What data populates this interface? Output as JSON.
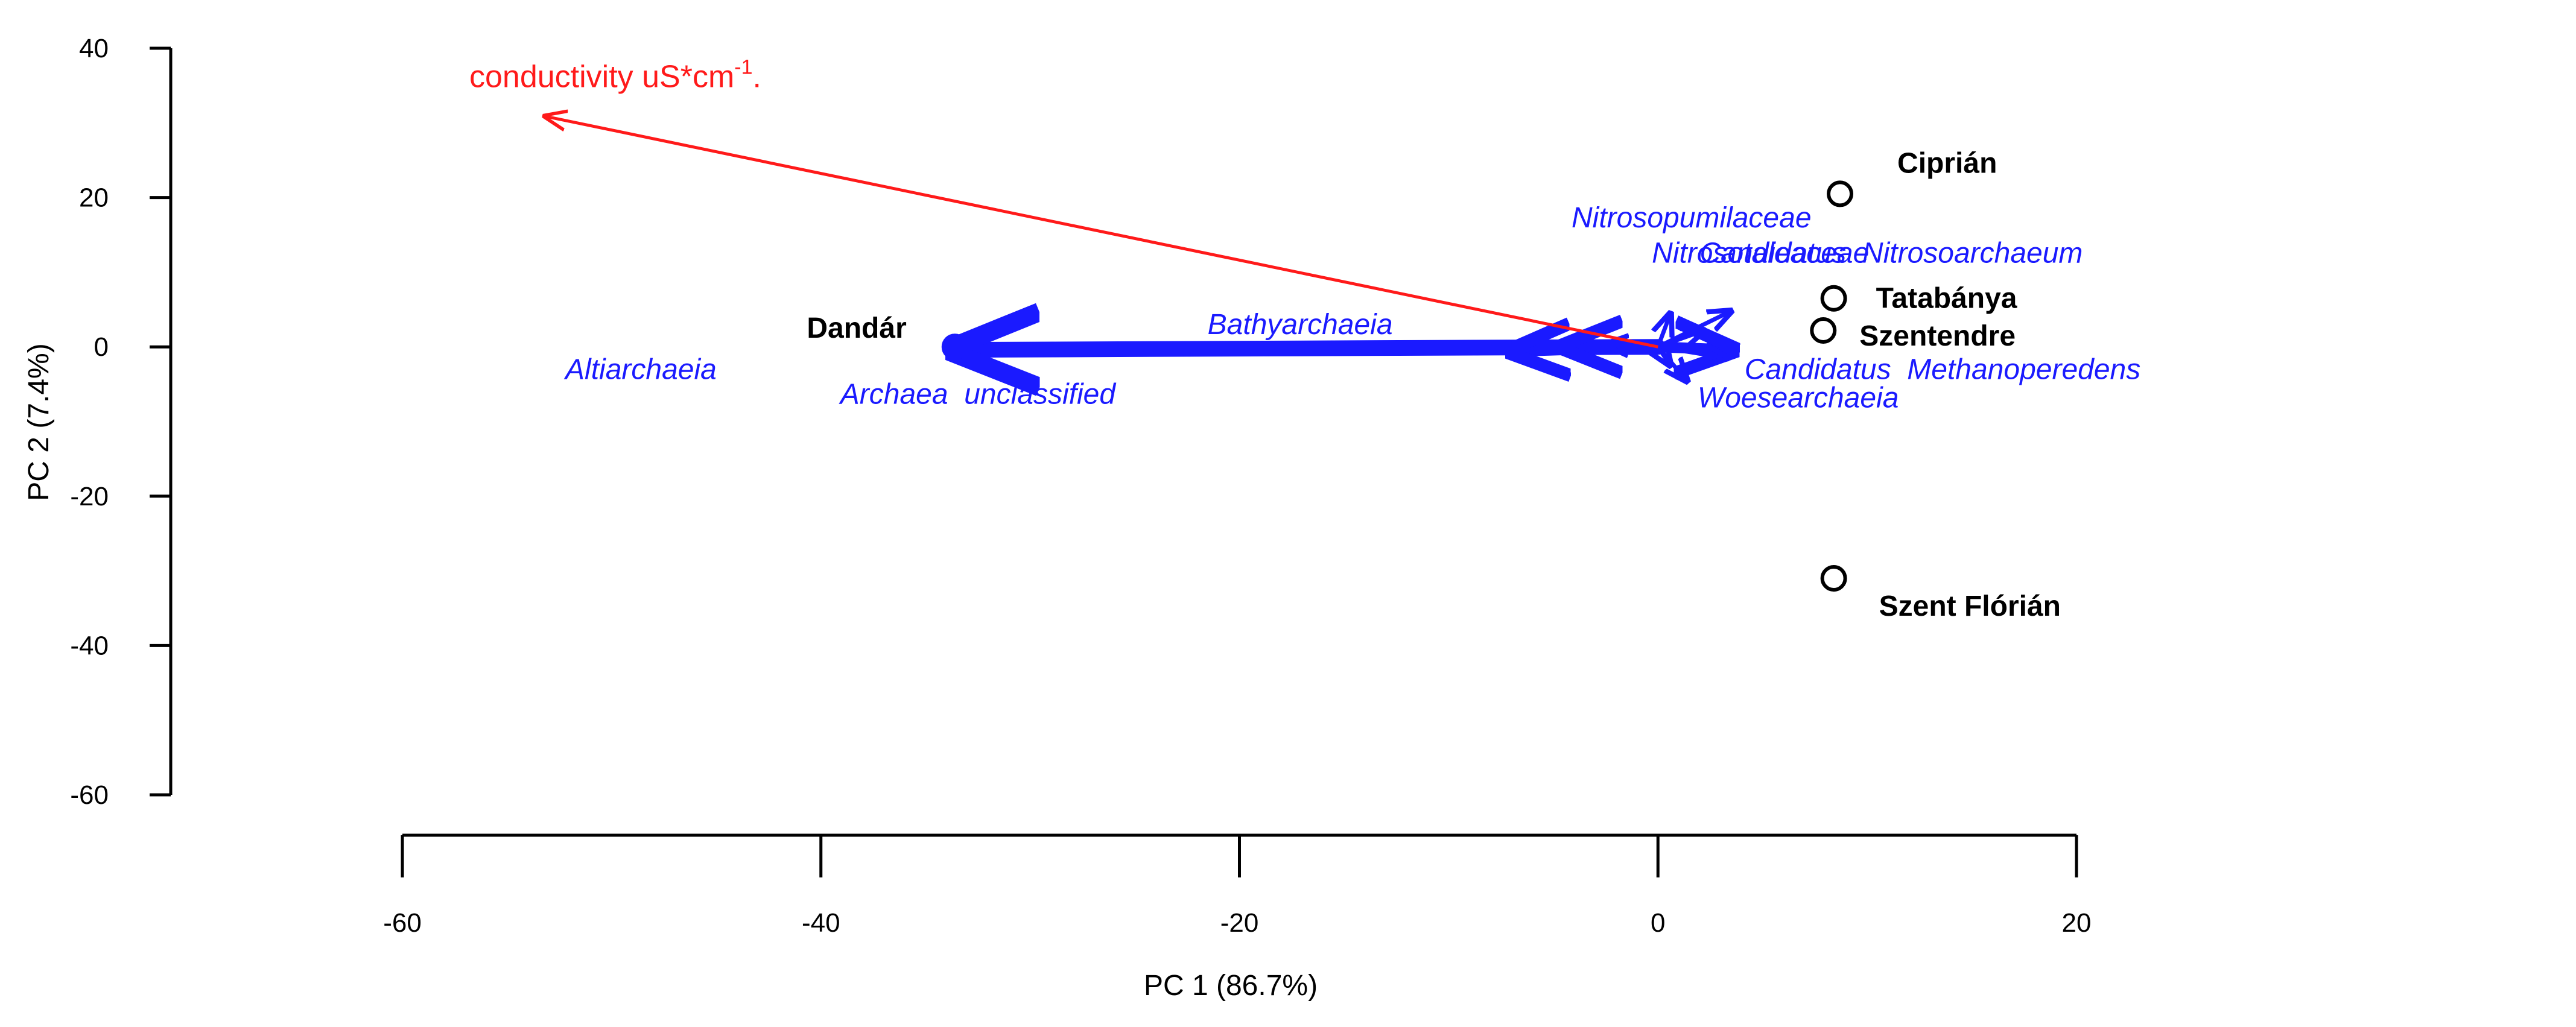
{
  "chart_data": {
    "type": "scatter",
    "subtype": "PCA biplot",
    "xlabel": "PC 1 (86.7%)",
    "ylabel": "PC 2 (7.4%)",
    "xlim": [
      -60,
      20
    ],
    "ylim": [
      -60,
      40
    ],
    "x_ticks": [
      -60,
      -40,
      -20,
      0,
      20
    ],
    "y_ticks": [
      40,
      20,
      0,
      -20,
      -40,
      -60
    ],
    "colors": {
      "sites": "#000000",
      "taxa": "#1a1aff",
      "environment": "#ff1a1a"
    },
    "sites": [
      {
        "name": "Ciprián",
        "x": 8.7,
        "y": 20.5
      },
      {
        "name": "Tatabánya",
        "x": 8.4,
        "y": 6.5
      },
      {
        "name": "Szentendre",
        "x": 7.9,
        "y": 2.2
      },
      {
        "name": "Szent Flórián",
        "x": 8.4,
        "y": -31.0
      },
      {
        "name": "Dandár",
        "x": -33.6,
        "y": 0.0
      }
    ],
    "taxa_vectors": [
      {
        "label": "Archaea  unclassified",
        "x": -33.6,
        "y": -0.4
      },
      {
        "label": "Bathyarchaeia",
        "x": -7.0,
        "y": -0.6
      },
      {
        "label": "",
        "x": -4.5,
        "y": 0.0
      },
      {
        "label": "",
        "x": -2.5,
        "y": 0.3
      },
      {
        "label": "",
        "x": 3.5,
        "y": 4.8
      },
      {
        "label": "",
        "x": 2.2,
        "y": 2.2
      },
      {
        "label": "",
        "x": 0.6,
        "y": 4.5
      },
      {
        "label": "",
        "x": 3.6,
        "y": -0.4
      },
      {
        "label": "",
        "x": 3.3,
        "y": -1.5
      },
      {
        "label": "",
        "x": 1.4,
        "y": -4.6
      },
      {
        "label": "",
        "x": 0.6,
        "y": -2.5
      }
    ],
    "taxa_labels": [
      {
        "text": "Nitrosopumilaceae",
        "x": 1.6,
        "y": 16.0
      },
      {
        "text": "Nitrosotaleaceae",
        "x": 4.9,
        "y": 11.3
      },
      {
        "text": "Candidatus  Nitrosoarchaeum",
        "x": 20.3,
        "y": 11.3
      },
      {
        "text": "Bathyarchaeia",
        "x": -17.1,
        "y": 1.7
      },
      {
        "text": "Altiarchaeia",
        "x": -48.6,
        "y": -4.3
      },
      {
        "text": "Archaea  unclassified",
        "x": -32.5,
        "y": -7.6
      },
      {
        "text": "Candidatus  Methanoperedens",
        "x": 13.6,
        "y": -4.3
      },
      {
        "text": "Woesearchaeia",
        "x": 6.7,
        "y": -8.1
      }
    ],
    "environmental_vectors": [
      {
        "label": "conductivity uS*cm",
        "superscript": "-1",
        "suffix": ".",
        "x": -53.2,
        "y": 30.9
      }
    ]
  }
}
